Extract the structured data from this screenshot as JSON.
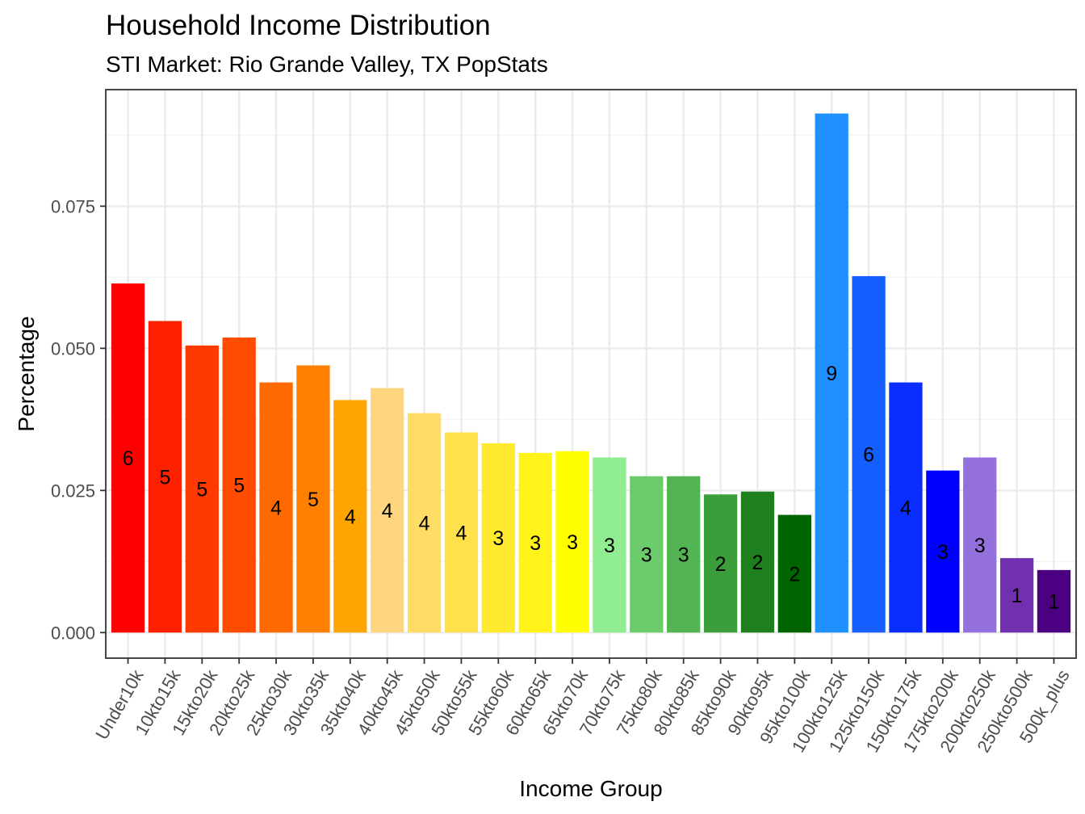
{
  "chart_data": {
    "type": "bar",
    "title": "Household Income Distribution",
    "subtitle": "STI Market: Rio Grande Valley, TX PopStats",
    "xlabel": "Income Group",
    "ylabel": "Percentage",
    "ylim": [
      -0.0045,
      0.0955
    ],
    "yticks": [
      "0.000",
      "0.025",
      "0.050",
      "0.075"
    ],
    "ytick_values": [
      0,
      0.025,
      0.05,
      0.075
    ],
    "grid": true,
    "categories": [
      "Under10k",
      "10kto15k",
      "15kto20k",
      "20kto25k",
      "25kto30k",
      "30kto35k",
      "35kto40k",
      "40kto45k",
      "45kto50k",
      "50kto55k",
      "55kto60k",
      "60kto65k",
      "65kto70k",
      "70kto75k",
      "75kto80k",
      "80kto85k",
      "85kto90k",
      "90kto95k",
      "95kto100k",
      "100kto125k",
      "125kto150k",
      "150kto175k",
      "175kto200k",
      "200kto250k",
      "250kto500k",
      "500k_plus"
    ],
    "values": [
      0.0614,
      0.0548,
      0.0505,
      0.0519,
      0.044,
      0.047,
      0.0409,
      0.043,
      0.0386,
      0.0352,
      0.0333,
      0.0316,
      0.0319,
      0.0308,
      0.0275,
      0.0275,
      0.0243,
      0.0248,
      0.0207,
      0.0913,
      0.0627,
      0.044,
      0.0285,
      0.0308,
      0.0131,
      0.011
    ],
    "labels": [
      "6",
      "5",
      "5",
      "5",
      "4",
      "5",
      "4",
      "4",
      "4",
      "4",
      "3",
      "3",
      "3",
      "3",
      "3",
      "3",
      "2",
      "2",
      "2",
      "9",
      "6",
      "4",
      "3",
      "3",
      "1",
      "1"
    ],
    "colors": [
      "#ff0000",
      "#ff2000",
      "#ff3a00",
      "#ff4c00",
      "#ff6a00",
      "#ff8000",
      "#ffa500",
      "#ffd580",
      "#ffdc64",
      "#ffe14b",
      "#ffea2e",
      "#fff31a",
      "#ffff00",
      "#90ee90",
      "#6ccc6c",
      "#52b452",
      "#3a9e3a",
      "#1f7f1f",
      "#006400",
      "#1e90ff",
      "#165fff",
      "#0a2eff",
      "#0000ff",
      "#9370db",
      "#7030b0",
      "#4b0082"
    ]
  }
}
